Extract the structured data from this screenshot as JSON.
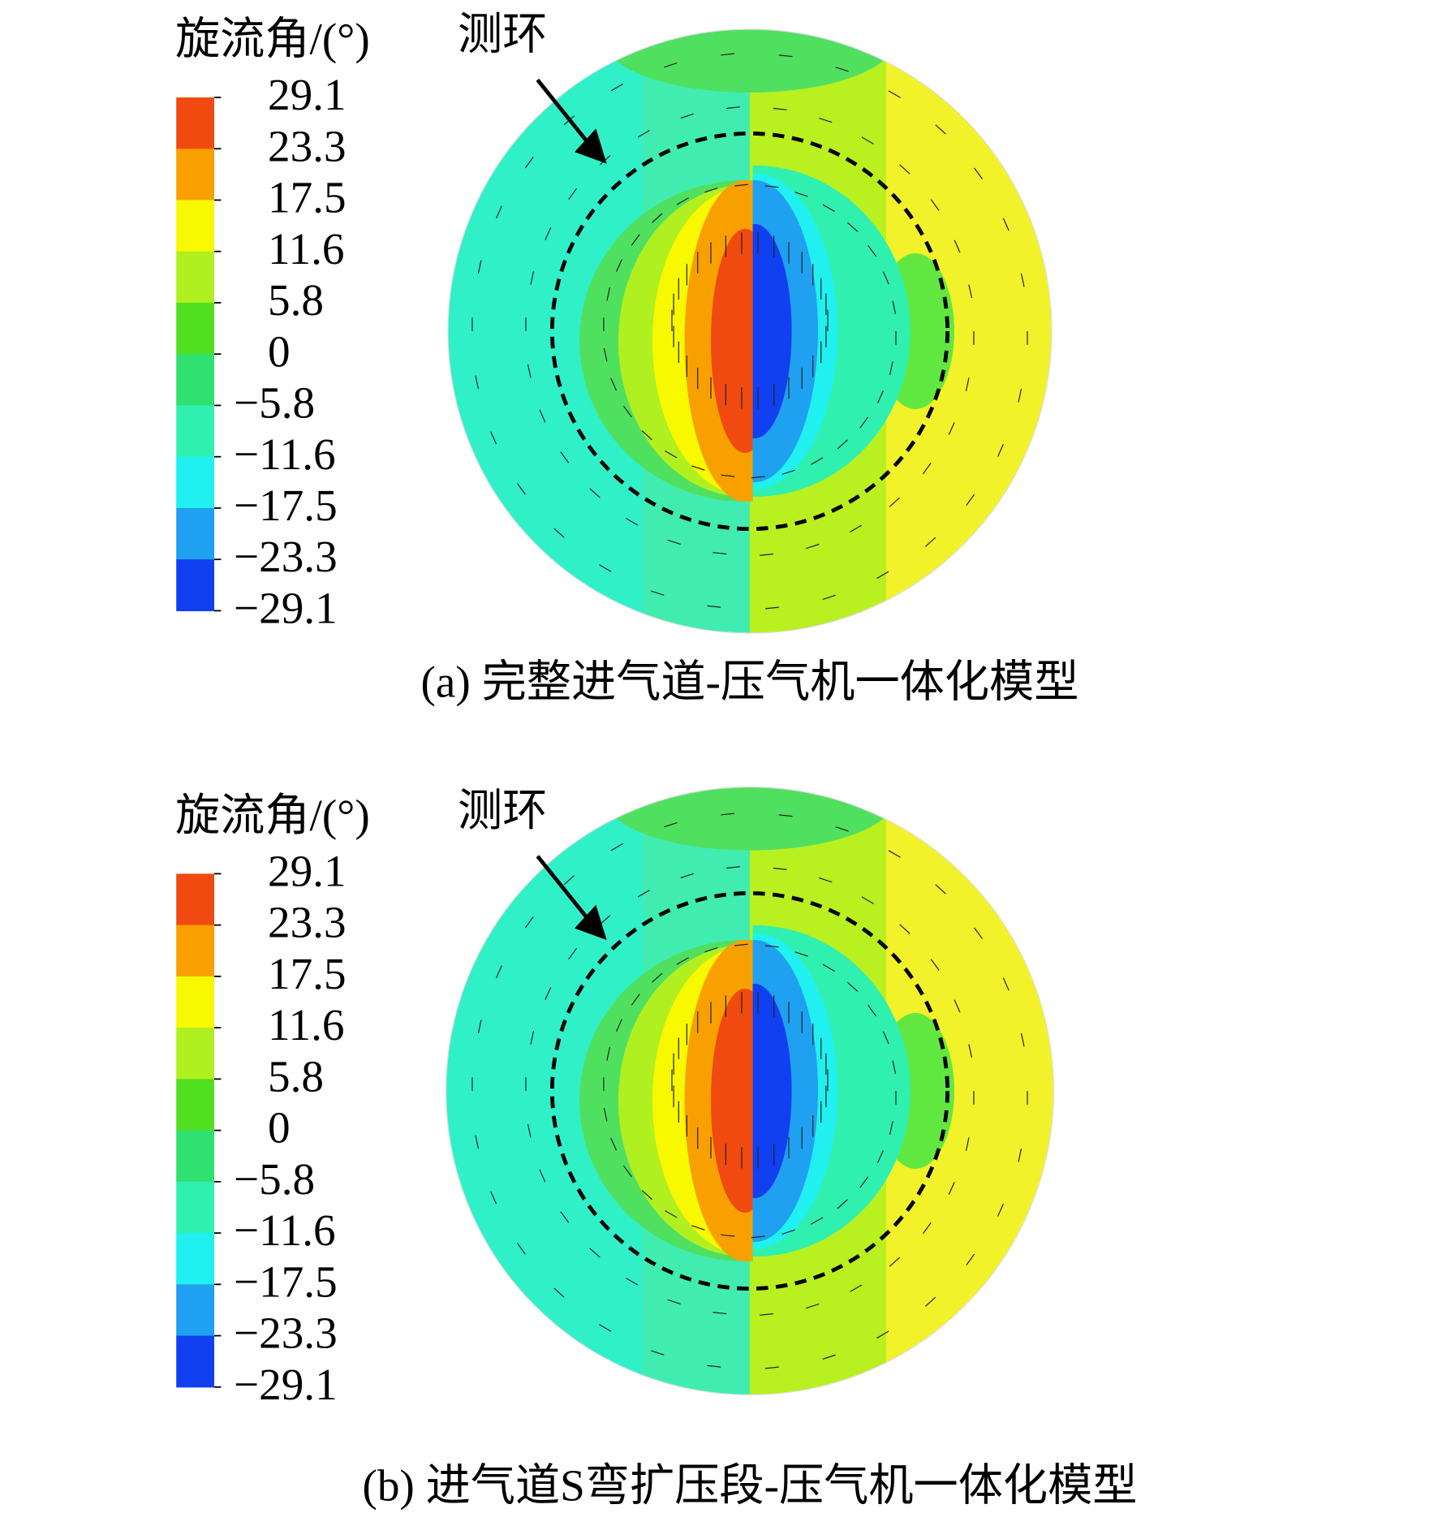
{
  "panels": [
    {
      "colorbar": {
        "title": "旋流角/(°)",
        "labels": [
          "29.1",
          "23.3",
          "17.5",
          "11.6",
          "5.8",
          "0",
          "−5.8",
          "−11.6",
          "−17.5",
          "−23.3",
          "−29.1"
        ],
        "colors": [
          "#f04a10",
          "#f8a000",
          "#f8f800",
          "#b0f020",
          "#50e020",
          "#30e070",
          "#30f0b0",
          "#20f0f0",
          "#20a0f0",
          "#1040f0"
        ]
      },
      "annotation": "测环",
      "caption": "(a) 完整进气道-压气机一体化模型"
    },
    {
      "colorbar": {
        "title": "旋流角/(°)",
        "labels": [
          "29.1",
          "23.3",
          "17.5",
          "11.6",
          "5.8",
          "0",
          "−5.8",
          "−11.6",
          "−17.5",
          "−23.3",
          "−29.1"
        ],
        "colors": [
          "#f04a10",
          "#f8a000",
          "#f8f800",
          "#b0f020",
          "#50e020",
          "#30e070",
          "#30f0b0",
          "#20f0f0",
          "#20a0f0",
          "#1040f0"
        ]
      },
      "annotation": "测环",
      "caption": "(b) 进气道S弯扩压段-压气机一体化模型"
    }
  ]
}
